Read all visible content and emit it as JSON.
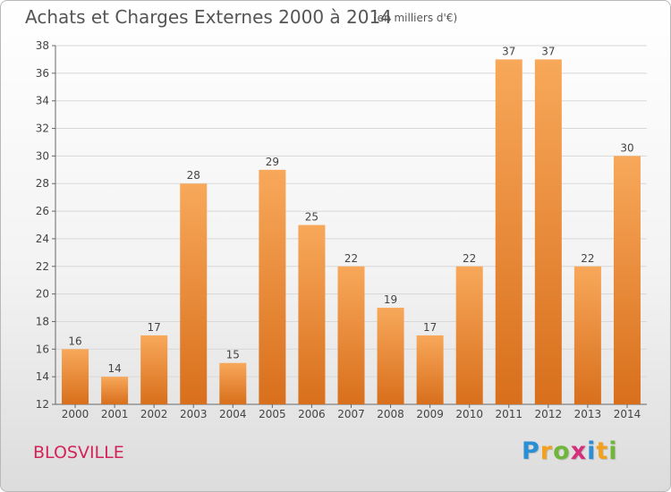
{
  "chart_data": {
    "type": "bar",
    "title": "Achats et Charges Externes 2000 à 2014",
    "unit_note": "(en milliers d'€)",
    "categories": [
      "2000",
      "2001",
      "2002",
      "2003",
      "2004",
      "2005",
      "2006",
      "2007",
      "2008",
      "2009",
      "2010",
      "2011",
      "2012",
      "2013",
      "2014"
    ],
    "values": [
      16,
      14,
      17,
      28,
      15,
      29,
      25,
      22,
      19,
      17,
      22,
      37,
      37,
      22,
      30
    ],
    "ylim": [
      12,
      38
    ],
    "yticks": [
      12,
      14,
      16,
      18,
      20,
      22,
      24,
      26,
      28,
      30,
      32,
      34,
      36,
      38
    ],
    "grid": true,
    "bar_color_top": "#f8a85a",
    "bar_color_bottom": "#d86f1c"
  },
  "commune": "BLOSVILLE",
  "logo": {
    "letters": [
      "P",
      "r",
      "o",
      "x",
      "i",
      "t",
      "i"
    ],
    "colors": [
      "#2a8fd4",
      "#f2a11f",
      "#6fb63b",
      "#d32f7a",
      "#2a8fd4",
      "#f2a11f",
      "#6fb63b"
    ]
  },
  "colors": {
    "title": "#555555",
    "commune": "#d2245a",
    "grid": "#d8d8d8"
  }
}
